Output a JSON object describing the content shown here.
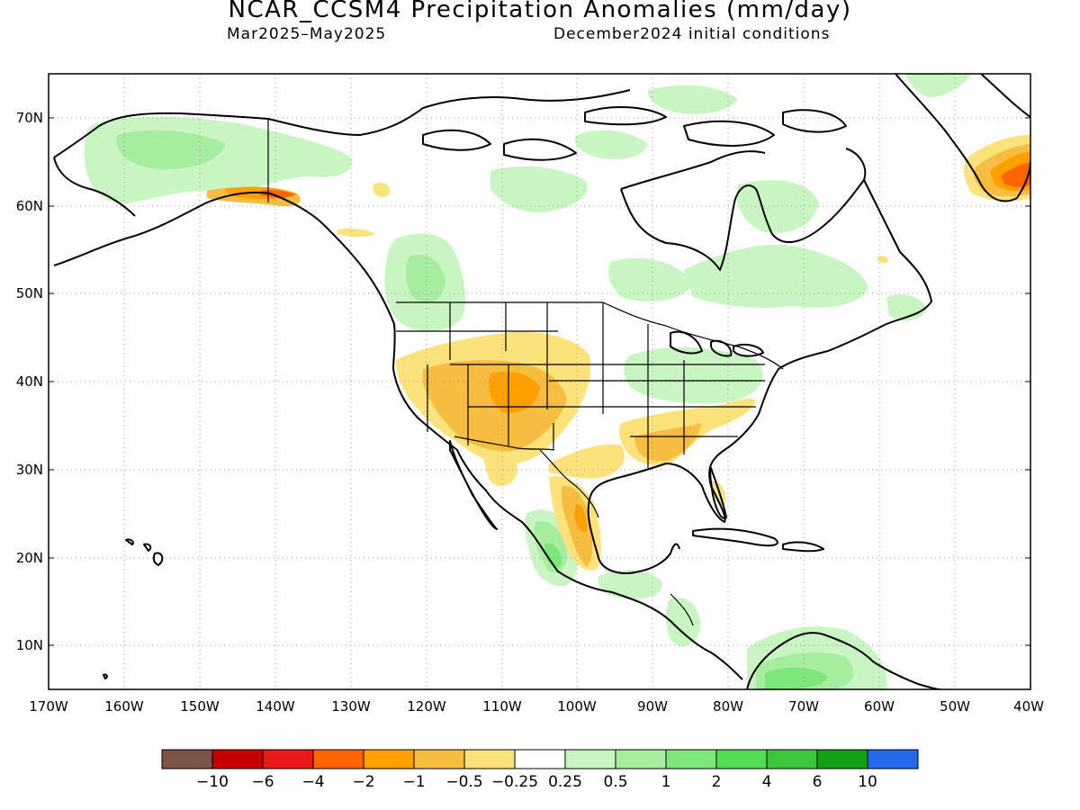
{
  "title": "NCAR_CCSM4 Precipitation Anomalies (mm/day)",
  "subtitle_left": "Mar2025–May2025",
  "subtitle_right": "December2024 initial conditions",
  "map": {
    "lon_range": [
      -170,
      -40
    ],
    "lat_range": [
      5,
      75
    ],
    "grid": "dotted",
    "lat_labels": [
      "10N",
      "20N",
      "30N",
      "40N",
      "50N",
      "60N",
      "70N"
    ],
    "lon_labels": [
      "170W",
      "160W",
      "150W",
      "140W",
      "130W",
      "120W",
      "110W",
      "100W",
      "90W",
      "80W",
      "70W",
      "60W",
      "50W",
      "40W"
    ]
  },
  "colorbar": {
    "colors": [
      "#7b5546",
      "#c40000",
      "#e81a1a",
      "#ff6400",
      "#ffa000",
      "#f7bd40",
      "#fce27a",
      "#ffffff",
      "#c9f5c3",
      "#a7eda0",
      "#7ee779",
      "#52dd52",
      "#3cc63c",
      "#14a014",
      "#2469e8"
    ],
    "labels": [
      "−10",
      "−6",
      "−4",
      "−2",
      "−1",
      "−0.5",
      "−0.25",
      "0.25",
      "0.5",
      "1",
      "2",
      "4",
      "6",
      "10"
    ]
  },
  "colors": {
    "dry_light": "#fce27a",
    "dry_mid": "#f7bd40",
    "dry_strong": "#ffa000",
    "dry_vstrong": "#ff6400",
    "wet_light": "#c9f5c3",
    "wet_mid": "#a7eda0",
    "wet_strong": "#7ee779",
    "wet_vstrong": "#3cc63c"
  }
}
